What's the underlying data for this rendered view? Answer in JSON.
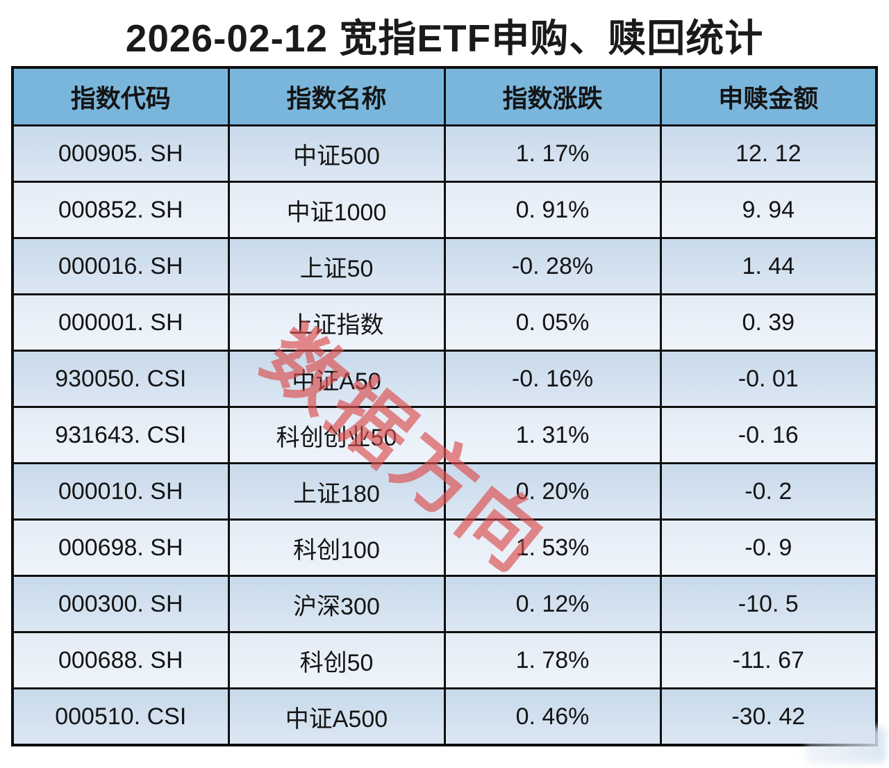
{
  "title": "2026-02-12 宽指ETF申购、赎回统计",
  "watermark": "数据方向",
  "colors": {
    "header_bg": "#7ab6dc",
    "row_odd": "#cddcec",
    "row_even": "#e9f0f8",
    "border": "#0f0f0f",
    "text": "#141414",
    "watermark_red": "#db4d4d"
  },
  "table": {
    "columns": [
      "指数代码",
      "指数名称",
      "指数涨跌",
      "申赎金额"
    ],
    "rows": [
      {
        "code": "000905. SH",
        "name": "中证500",
        "change": "1. 17%",
        "amount": "12. 12"
      },
      {
        "code": "000852. SH",
        "name": "中证1000",
        "change": "0. 91%",
        "amount": "9. 94"
      },
      {
        "code": "000016. SH",
        "name": "上证50",
        "change": "-0. 28%",
        "amount": "1. 44"
      },
      {
        "code": "000001. SH",
        "name": "上证指数",
        "change": "0. 05%",
        "amount": "0. 39"
      },
      {
        "code": "930050. CSI",
        "name": "中证A50",
        "change": "-0. 16%",
        "amount": "-0. 01"
      },
      {
        "code": "931643. CSI",
        "name": "科创创业50",
        "change": "1. 31%",
        "amount": "-0. 16"
      },
      {
        "code": "000010. SH",
        "name": "上证180",
        "change": "0. 20%",
        "amount": "-0. 2"
      },
      {
        "code": "000698. SH",
        "name": "科创100",
        "change": "1. 53%",
        "amount": "-0. 9"
      },
      {
        "code": "000300. SH",
        "name": "沪深300",
        "change": "0. 12%",
        "amount": "-10. 5"
      },
      {
        "code": "000688. SH",
        "name": "科创50",
        "change": "1. 78%",
        "amount": "-11. 67"
      },
      {
        "code": "000510. CSI",
        "name": "中证A500",
        "change": "0. 46%",
        "amount": "-30. 42"
      }
    ]
  },
  "chart_data": {
    "type": "table",
    "title": "2026-02-12 宽指ETF申购、赎回统计",
    "columns": [
      "指数代码",
      "指数名称",
      "指数涨跌",
      "申赎金额"
    ],
    "rows": [
      [
        "000905.SH",
        "中证500",
        1.17,
        12.12
      ],
      [
        "000852.SH",
        "中证1000",
        0.91,
        9.94
      ],
      [
        "000016.SH",
        "上证50",
        -0.28,
        1.44
      ],
      [
        "000001.SH",
        "上证指数",
        0.05,
        0.39
      ],
      [
        "930050.CSI",
        "中证A50",
        -0.16,
        -0.01
      ],
      [
        "931643.CSI",
        "科创创业50",
        1.31,
        -0.16
      ],
      [
        "000010.SH",
        "上证180",
        0.2,
        -0.2
      ],
      [
        "000698.SH",
        "科创100",
        1.53,
        -0.9
      ],
      [
        "000300.SH",
        "沪深300",
        0.12,
        -10.5
      ],
      [
        "000688.SH",
        "科创50",
        1.78,
        -11.67
      ],
      [
        "000510.CSI",
        "中证A500",
        0.46,
        -30.42
      ]
    ],
    "change_unit": "%"
  }
}
